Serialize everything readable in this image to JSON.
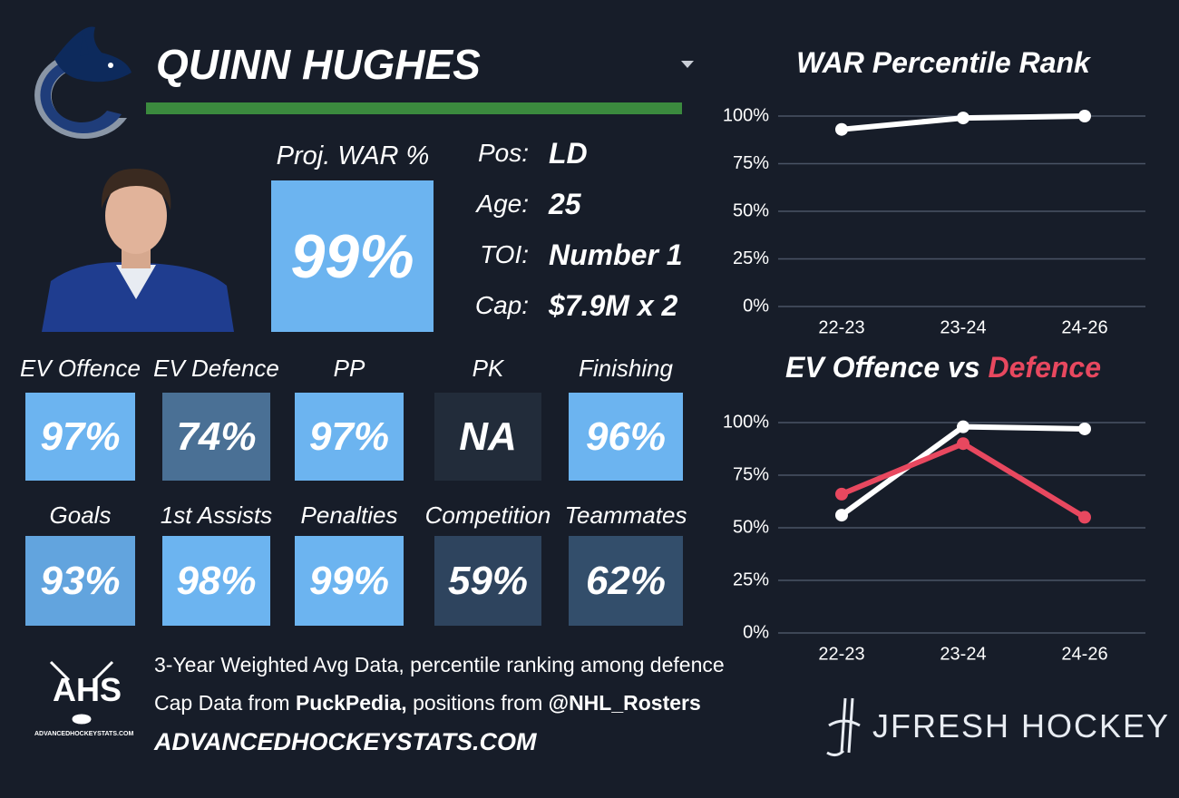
{
  "header": {
    "player": "QUINN HUGHES"
  },
  "projection": {
    "label": "Proj. WAR %",
    "value": "99%",
    "color": "#6cb4f0"
  },
  "bio": [
    {
      "label": "Pos:",
      "value": "LD"
    },
    {
      "label": "Age:",
      "value": "25"
    },
    {
      "label": "TOI:",
      "value": "Number 1"
    },
    {
      "label": "Cap:",
      "value": "$7.9M x 2"
    }
  ],
  "tiles": [
    {
      "label": "EV Offence",
      "value": "97%",
      "color": "#6cb4f0"
    },
    {
      "label": "EV Defence",
      "value": "74%",
      "color": "#4a7095"
    },
    {
      "label": "PP",
      "value": "97%",
      "color": "#6cb4f0"
    },
    {
      "label": "PK",
      "value": "NA",
      "color": "#222c3a"
    },
    {
      "label": "Finishing",
      "value": "96%",
      "color": "#6cb4f0"
    },
    {
      "label": "Goals",
      "value": "93%",
      "color": "#62a4de"
    },
    {
      "label": "1st Assists",
      "value": "98%",
      "color": "#6cb4f0"
    },
    {
      "label": "Penalties",
      "value": "99%",
      "color": "#6cb4f0"
    },
    {
      "label": "Competition",
      "value": "59%",
      "color": "#2e445e"
    },
    {
      "label": "Teammates",
      "value": "62%",
      "color": "#334e6b"
    }
  ],
  "footer": {
    "lines": [
      [
        "3-Year Weighted Avg Data, percentile ranking among defence"
      ],
      [
        "Cap Data from ",
        "PuckPedia,",
        " positions from ",
        "@NHL_Rosters"
      ]
    ],
    "site": "ADVANCEDHOCKEYSTATS.COM"
  },
  "logos": {
    "ahs": "AHS",
    "ahs_url": "ADVANCEDHOCKEYSTATS.COM",
    "jfresh": "JFRESH HOCKEY"
  },
  "chart_data": [
    {
      "type": "line",
      "title": [
        "WAR Percentile Rank"
      ],
      "categories": [
        "22-23",
        "23-24",
        "24-26"
      ],
      "series": [
        {
          "color": "#ffffff",
          "values": [
            93,
            99,
            100
          ]
        }
      ],
      "ylim": [
        0,
        100
      ],
      "yticks": [
        {
          "value": 0,
          "label": "0%"
        },
        {
          "value": 25,
          "label": "25%"
        },
        {
          "value": 50,
          "label": "50%"
        },
        {
          "value": 75,
          "label": "75%"
        },
        {
          "value": 100,
          "label": "100%"
        }
      ],
      "grid": true
    },
    {
      "type": "line",
      "title": [
        "EV Offence vs ",
        "Defence"
      ],
      "title_colors": [
        "#ffffff",
        "#e8485f"
      ],
      "categories": [
        "22-23",
        "23-24",
        "24-26"
      ],
      "series": [
        {
          "color": "#ffffff",
          "values": [
            56,
            98,
            97
          ]
        },
        {
          "color": "#e8485f",
          "values": [
            66,
            90,
            55
          ]
        }
      ],
      "ylim": [
        0,
        100
      ],
      "yticks": [
        {
          "value": 0,
          "label": "0%"
        },
        {
          "value": 25,
          "label": "25%"
        },
        {
          "value": 50,
          "label": "50%"
        },
        {
          "value": 75,
          "label": "75%"
        },
        {
          "value": 100,
          "label": "100%"
        }
      ],
      "grid": true
    }
  ]
}
